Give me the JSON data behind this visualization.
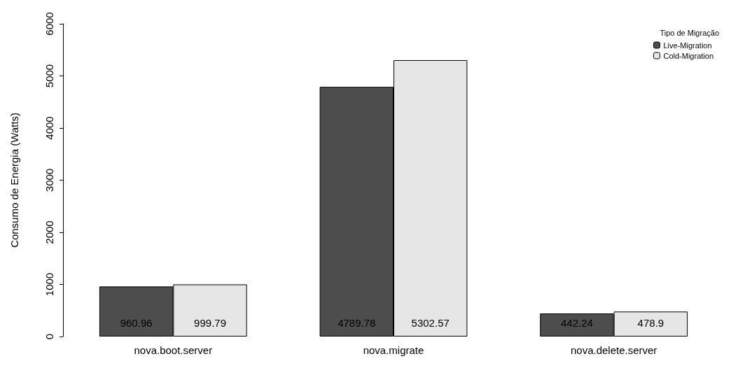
{
  "chart_data": {
    "type": "bar",
    "ylabel": "Consumo de Energia (Watts)",
    "legend_title": "Tipo de Migração",
    "categories": [
      "nova.boot.server",
      "nova.migrate",
      "nova.delete.server"
    ],
    "series": [
      {
        "name": "Live-Migration",
        "color": "#4d4d4d",
        "values": [
          960.96,
          4789.78,
          442.24
        ]
      },
      {
        "name": "Cold-Migration",
        "color": "#e6e6e6",
        "values": [
          999.79,
          5302.57,
          478.9
        ]
      }
    ],
    "ylim": [
      0,
      6000
    ],
    "yticks": [
      0,
      1000,
      2000,
      3000,
      4000,
      5000,
      6000
    ],
    "data_labels": true,
    "grid": false,
    "legend": "top right"
  }
}
